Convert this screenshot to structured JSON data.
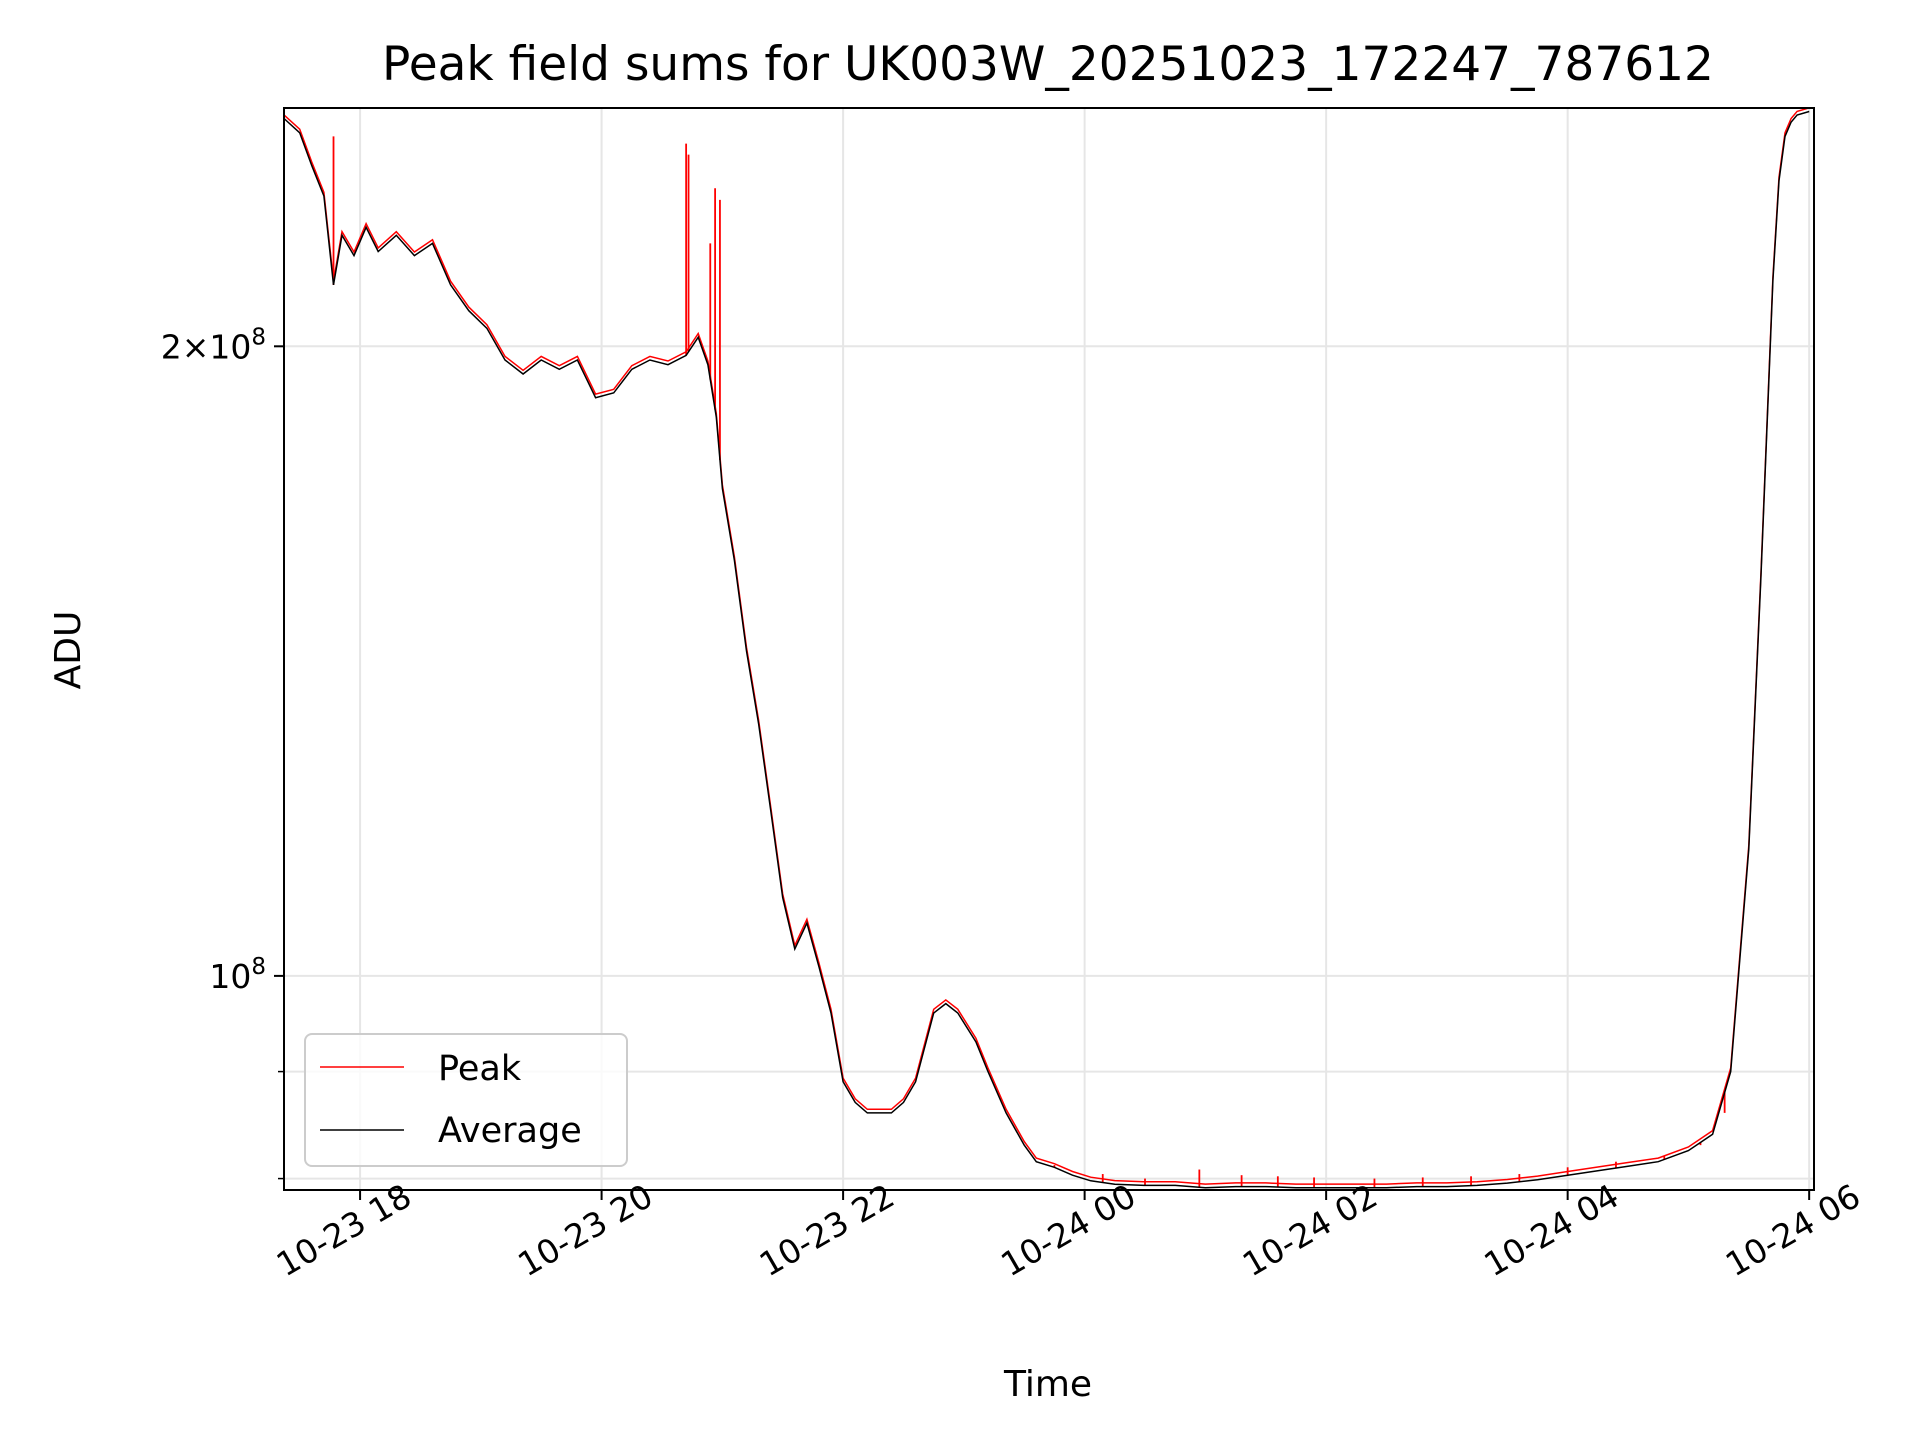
{
  "chart_data": {
    "type": "line",
    "title": "Peak field sums for UK003W_20251023_172247_787612",
    "xlabel": "Time",
    "ylabel": "ADU",
    "y_scale": "log",
    "ylim": [
      79000000,
      260000000
    ],
    "xlim_hours_since_2025_10_23_00_00": [
      17.37,
      30.04
    ],
    "grid": true,
    "legend_position": "lower-left",
    "x_ticks": [
      {
        "hour": 18,
        "label": "10-23 18"
      },
      {
        "hour": 20,
        "label": "10-23 20"
      },
      {
        "hour": 22,
        "label": "10-23 22"
      },
      {
        "hour": 24,
        "label": "10-24 00"
      },
      {
        "hour": 26,
        "label": "10-24 02"
      },
      {
        "hour": 28,
        "label": "10-24 04"
      },
      {
        "hour": 30,
        "label": "10-24 06"
      }
    ],
    "y_ticks": [
      {
        "value": 200000000,
        "mantissa": "2×10",
        "exponent": "8"
      },
      {
        "value": 100000000,
        "mantissa": "10",
        "exponent": "8"
      }
    ],
    "y_minor_ticks": [
      80000000,
      90000000
    ],
    "series": [
      {
        "name": "Average",
        "color": "#000000",
        "x_hours": [
          17.37,
          17.5,
          17.6,
          17.7,
          17.78,
          17.85,
          17.95,
          18.05,
          18.15,
          18.3,
          18.45,
          18.6,
          18.75,
          18.9,
          19.05,
          19.2,
          19.35,
          19.5,
          19.65,
          19.8,
          19.95,
          20.1,
          20.25,
          20.4,
          20.55,
          20.7,
          20.8,
          20.88,
          20.95,
          21.0,
          21.1,
          21.2,
          21.3,
          21.4,
          21.5,
          21.6,
          21.7,
          21.8,
          21.9,
          22.0,
          22.1,
          22.2,
          22.3,
          22.4,
          22.5,
          22.6,
          22.75,
          22.85,
          22.95,
          23.1,
          23.2,
          23.35,
          23.5,
          23.6,
          23.75,
          23.9,
          24.05,
          24.25,
          24.5,
          24.75,
          25.0,
          25.25,
          25.5,
          25.75,
          26.0,
          26.25,
          26.5,
          26.75,
          27.0,
          27.25,
          27.5,
          27.75,
          28.0,
          28.25,
          28.5,
          28.75,
          29.0,
          29.2,
          29.35,
          29.5,
          29.6,
          29.7,
          29.75,
          29.8,
          29.85,
          29.9,
          30.0
        ],
        "values": [
          257000000,
          253000000,
          244000000,
          236000000,
          214000000,
          226000000,
          221000000,
          228000000,
          222000000,
          226000000,
          221000000,
          224000000,
          214000000,
          208000000,
          204000000,
          197000000,
          194000000,
          197000000,
          195000000,
          197000000,
          189000000,
          190000000,
          195000000,
          197000000,
          196000000,
          198000000,
          202000000,
          196000000,
          185000000,
          171000000,
          158000000,
          143000000,
          132000000,
          120000000,
          109000000,
          103000000,
          106000000,
          101000000,
          96000000,
          89000000,
          87000000,
          86000000,
          86000000,
          86000000,
          87000000,
          89000000,
          96000000,
          97000000,
          96000000,
          93000000,
          90000000,
          86000000,
          83000000,
          81500000,
          81000000,
          80300000,
          79800000,
          79500000,
          79400000,
          79400000,
          79200000,
          79300000,
          79300000,
          79200000,
          79200000,
          79200000,
          79200000,
          79300000,
          79300000,
          79400000,
          79600000,
          79900000,
          80300000,
          80700000,
          81100000,
          81500000,
          82500000,
          84000000,
          90000000,
          115000000,
          155000000,
          215000000,
          240000000,
          252000000,
          256000000,
          258000000,
          259000000
        ]
      },
      {
        "name": "Peak",
        "color": "#ff0000",
        "spikes": [
          {
            "x_hour": 17.78,
            "value": 252000000
          },
          {
            "x_hour": 20.7,
            "value": 250000000
          },
          {
            "x_hour": 20.72,
            "value": 247000000
          },
          {
            "x_hour": 20.9,
            "value": 224000000
          },
          {
            "x_hour": 20.94,
            "value": 238000000
          },
          {
            "x_hour": 20.98,
            "value": 235000000
          },
          {
            "x_hour": 23.75,
            "value": 81200000
          },
          {
            "x_hour": 24.15,
            "value": 80400000
          },
          {
            "x_hour": 24.5,
            "value": 80000000
          },
          {
            "x_hour": 24.95,
            "value": 80800000
          },
          {
            "x_hour": 25.3,
            "value": 80300000
          },
          {
            "x_hour": 25.6,
            "value": 80200000
          },
          {
            "x_hour": 25.9,
            "value": 80100000
          },
          {
            "x_hour": 26.4,
            "value": 80000000
          },
          {
            "x_hour": 26.8,
            "value": 80100000
          },
          {
            "x_hour": 27.2,
            "value": 80200000
          },
          {
            "x_hour": 27.6,
            "value": 80400000
          },
          {
            "x_hour": 28.0,
            "value": 81000000
          },
          {
            "x_hour": 28.4,
            "value": 81500000
          },
          {
            "x_hour": 28.8,
            "value": 82000000
          },
          {
            "x_hour": 29.1,
            "value": 83000000
          },
          {
            "x_hour": 29.3,
            "value": 86000000
          }
        ]
      }
    ]
  }
}
